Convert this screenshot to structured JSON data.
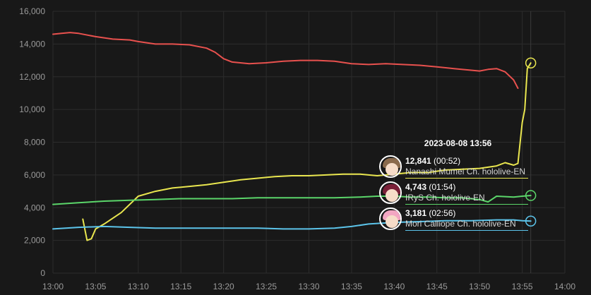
{
  "chart_data": {
    "type": "line",
    "x_unit": "time (HH:MM)",
    "xlim": [
      "13:00",
      "14:00"
    ],
    "ylim": [
      0,
      16000
    ],
    "xticks": [
      "13:00",
      "13:05",
      "13:10",
      "13:15",
      "13:20",
      "13:25",
      "13:30",
      "13:35",
      "13:40",
      "13:45",
      "13:50",
      "13:55",
      "14:00"
    ],
    "yticks": [
      "0",
      "2,000",
      "4,000",
      "6,000",
      "8,000",
      "10,000",
      "12,000",
      "14,000",
      "16,000"
    ],
    "grid": true,
    "legend": "none",
    "series": [
      {
        "color": "#e8514e",
        "points": [
          [
            "13:00",
            14600
          ],
          [
            "13:01",
            14650
          ],
          [
            "13:02",
            14700
          ],
          [
            "13:03",
            14650
          ],
          [
            "13:05",
            14450
          ],
          [
            "13:07",
            14300
          ],
          [
            "13:09",
            14250
          ],
          [
            "13:10",
            14150
          ],
          [
            "13:12",
            14000
          ],
          [
            "13:14",
            14000
          ],
          [
            "13:16",
            13950
          ],
          [
            "13:18",
            13750
          ],
          [
            "13:19",
            13500
          ],
          [
            "13:20",
            13100
          ],
          [
            "13:21",
            12900
          ],
          [
            "13:23",
            12800
          ],
          [
            "13:25",
            12850
          ],
          [
            "13:27",
            12950
          ],
          [
            "13:29",
            13000
          ],
          [
            "13:31",
            13000
          ],
          [
            "13:33",
            12950
          ],
          [
            "13:35",
            12800
          ],
          [
            "13:37",
            12750
          ],
          [
            "13:39",
            12800
          ],
          [
            "13:41",
            12750
          ],
          [
            "13:43",
            12700
          ],
          [
            "13:45",
            12600
          ],
          [
            "13:47",
            12500
          ],
          [
            "13:49",
            12400
          ],
          [
            "13:50",
            12350
          ],
          [
            "13:51",
            12450
          ],
          [
            "13:52",
            12500
          ],
          [
            "13:53",
            12300
          ],
          [
            "13:54",
            11800
          ],
          [
            "13:54.5",
            11300
          ]
        ]
      },
      {
        "color": "#e9e64f",
        "points": [
          [
            "13:03.5",
            3300
          ],
          [
            "13:04",
            2000
          ],
          [
            "13:04.5",
            2100
          ],
          [
            "13:05",
            2700
          ],
          [
            "13:06",
            3000
          ],
          [
            "13:08",
            3700
          ],
          [
            "13:10",
            4700
          ],
          [
            "13:12",
            5000
          ],
          [
            "13:14",
            5200
          ],
          [
            "13:16",
            5300
          ],
          [
            "13:18",
            5400
          ],
          [
            "13:20",
            5550
          ],
          [
            "13:22",
            5700
          ],
          [
            "13:24",
            5800
          ],
          [
            "13:26",
            5900
          ],
          [
            "13:28",
            5950
          ],
          [
            "13:30",
            5950
          ],
          [
            "13:32",
            6000
          ],
          [
            "13:34",
            6050
          ],
          [
            "13:36",
            6050
          ],
          [
            "13:38",
            5950
          ],
          [
            "13:40",
            6050
          ],
          [
            "13:42",
            6150
          ],
          [
            "13:44",
            6150
          ],
          [
            "13:46",
            6300
          ],
          [
            "13:48",
            6350
          ],
          [
            "13:50",
            6400
          ],
          [
            "13:52",
            6550
          ],
          [
            "13:53",
            6750
          ],
          [
            "13:54",
            6600
          ],
          [
            "13:54.5",
            6700
          ],
          [
            "13:55",
            9200
          ],
          [
            "13:55.3",
            10000
          ],
          [
            "13:55.6",
            12500
          ],
          [
            "13:56",
            12841
          ]
        ]
      },
      {
        "color": "#5bd66a",
        "points": [
          [
            "13:00",
            4200
          ],
          [
            "13:03",
            4300
          ],
          [
            "13:06",
            4400
          ],
          [
            "13:09",
            4450
          ],
          [
            "13:12",
            4500
          ],
          [
            "13:15",
            4550
          ],
          [
            "13:18",
            4550
          ],
          [
            "13:21",
            4550
          ],
          [
            "13:24",
            4600
          ],
          [
            "13:27",
            4600
          ],
          [
            "13:30",
            4600
          ],
          [
            "13:33",
            4600
          ],
          [
            "13:36",
            4650
          ],
          [
            "13:38",
            4700
          ],
          [
            "13:40",
            4700
          ],
          [
            "13:42",
            4650
          ],
          [
            "13:44",
            4650
          ],
          [
            "13:46",
            4600
          ],
          [
            "13:48",
            4600
          ],
          [
            "13:49",
            4550
          ],
          [
            "13:50",
            4500
          ],
          [
            "13:51",
            4350
          ],
          [
            "13:52",
            4700
          ],
          [
            "13:54",
            4650
          ],
          [
            "13:55",
            4700
          ],
          [
            "13:56",
            4743
          ]
        ]
      },
      {
        "color": "#5cc4ea",
        "points": [
          [
            "13:00",
            2700
          ],
          [
            "13:03",
            2800
          ],
          [
            "13:06",
            2850
          ],
          [
            "13:09",
            2800
          ],
          [
            "13:12",
            2750
          ],
          [
            "13:15",
            2750
          ],
          [
            "13:18",
            2750
          ],
          [
            "13:21",
            2750
          ],
          [
            "13:24",
            2750
          ],
          [
            "13:27",
            2700
          ],
          [
            "13:30",
            2700
          ],
          [
            "13:33",
            2750
          ],
          [
            "13:35",
            2850
          ],
          [
            "13:37",
            3000
          ],
          [
            "13:40",
            3100
          ],
          [
            "13:43",
            3150
          ],
          [
            "13:46",
            3200
          ],
          [
            "13:49",
            3200
          ],
          [
            "13:52",
            3250
          ],
          [
            "13:54",
            3250
          ],
          [
            "13:55",
            3200
          ],
          [
            "13:56",
            3181
          ]
        ]
      }
    ],
    "tooltip": {
      "title": "2023-08-08 13:56",
      "rows": [
        {
          "value": "12,841",
          "time": "(00:52)",
          "name": "Nanashi Mumei Ch. hololive-EN",
          "color": "#e9e64f"
        },
        {
          "value": "4,743",
          "time": "(01:54)",
          "name": "IRyS Ch. hololive-EN",
          "color": "#5bd66a"
        },
        {
          "value": "3,181",
          "time": "(02:56)",
          "name": "Mori Calliope Ch. hololive-EN",
          "color": "#5cc4ea"
        }
      ]
    }
  }
}
